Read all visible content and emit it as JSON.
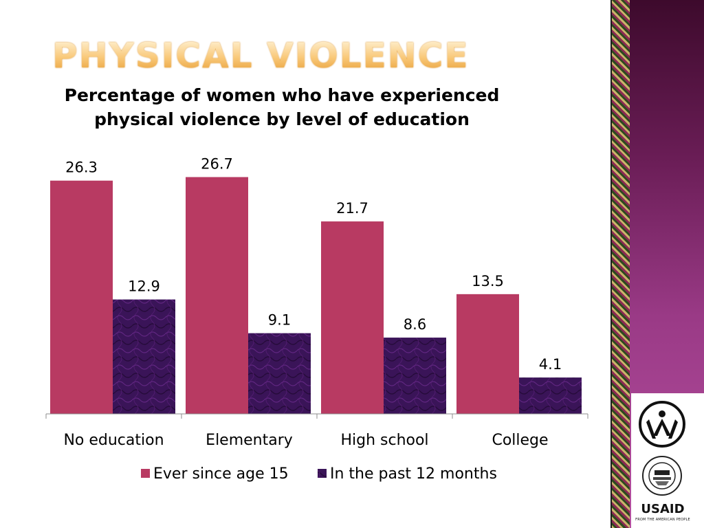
{
  "slide": {
    "title": "Physical Violence"
  },
  "chart_data": {
    "type": "bar",
    "title": "Percentage of women who have experienced physical violence by level of education",
    "categories": [
      "No education",
      "Elementary",
      "High school",
      "College"
    ],
    "series": [
      {
        "name": "Ever since age 15",
        "values": [
          26.3,
          26.7,
          21.7,
          13.5
        ],
        "color": "#b83a62"
      },
      {
        "name": "In the past 12 months",
        "values": [
          12.9,
          9.1,
          8.6,
          4.1
        ],
        "color": "#3a1458"
      }
    ],
    "ylim": [
      0,
      30
    ],
    "xlabel": "",
    "ylabel": "",
    "grid": false,
    "legend_position": "bottom",
    "data_labels": true
  },
  "logos": {
    "usaid_name": "USAID",
    "usaid_tagline": "FROM THE AMERICAN PEOPLE",
    "usaid_seal_text": "UNITED STATES AGENCY INTERNATIONAL DEVELOPMENT",
    "people_logo_icon": "people-circle-icon"
  }
}
